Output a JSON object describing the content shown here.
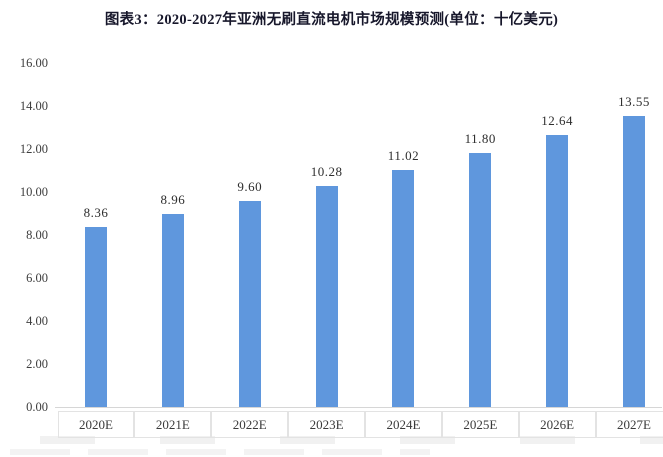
{
  "title": "图表3：2020-2027年亚洲无刷直流电机市场规模预测(单位：十亿美元)",
  "chart_data": {
    "type": "bar",
    "title": "图表3：2020-2027年亚洲无刷直流电机市场规模预测(单位：十亿美元)",
    "categories": [
      "2020E",
      "2021E",
      "2022E",
      "2023E",
      "2024E",
      "2025E",
      "2026E",
      "2027E"
    ],
    "values": [
      8.36,
      8.96,
      9.6,
      10.28,
      11.02,
      11.8,
      12.64,
      13.55
    ],
    "value_labels": [
      "8.36",
      "8.96",
      "9.60",
      "10.28",
      "11.02",
      "11.80",
      "12.64",
      "13.55"
    ],
    "xlabel": "",
    "ylabel": "",
    "ylim": [
      0,
      16
    ],
    "ytick_labels": [
      "0.00",
      "2.00",
      "4.00",
      "6.00",
      "8.00",
      "10.00",
      "12.00",
      "14.00",
      "16.00"
    ],
    "grid": false,
    "legend": null,
    "bar_color": "#5f97dd",
    "axis_line_color": "#d6d6d6",
    "text_color": "#3d3d3d",
    "title_color": "#17172b"
  }
}
